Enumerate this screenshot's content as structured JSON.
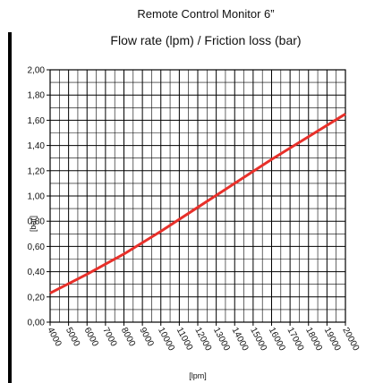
{
  "chart_data": {
    "type": "line",
    "title": "Remote Control Monitor 6”",
    "subtitle": "Flow rate (lpm) / Friction loss (bar)",
    "x_label": "[lpm]",
    "y_label": "[bar]",
    "x": [
      4000,
      6000,
      8000,
      10000,
      12000,
      14000,
      16000,
      18000,
      20000
    ],
    "series": [
      {
        "name": "Friction loss",
        "color": "#e8302a",
        "values": [
          0.23,
          0.38,
          0.54,
          0.72,
          0.91,
          1.1,
          1.29,
          1.47,
          1.65
        ]
      }
    ],
    "xlim": [
      4000,
      20000
    ],
    "xticks": [
      4000,
      5000,
      6000,
      7000,
      8000,
      9000,
      10000,
      11000,
      12000,
      13000,
      14000,
      15000,
      16000,
      17000,
      18000,
      19000,
      20000
    ],
    "ylim": [
      0,
      2
    ],
    "yticks": [
      {
        "value": 0,
        "label": "0,00"
      },
      {
        "value": 0.2,
        "label": "0,20"
      },
      {
        "value": 0.4,
        "label": "0,40"
      },
      {
        "value": 0.6,
        "label": "0,60"
      },
      {
        "value": 0.8,
        "label": "0,80"
      },
      {
        "value": 1.0,
        "label": "1,00"
      },
      {
        "value": 1.2,
        "label": "1,20"
      },
      {
        "value": 1.4,
        "label": "1,40"
      },
      {
        "value": 1.6,
        "label": "1,60"
      },
      {
        "value": 1.8,
        "label": "1,80"
      },
      {
        "value": 2.0,
        "label": "2,00"
      }
    ],
    "grid": true,
    "minor_grid": true
  }
}
